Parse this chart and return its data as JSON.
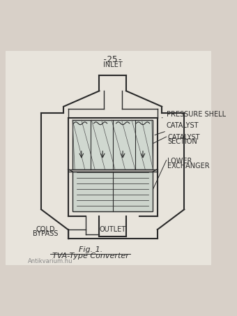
{
  "background_color": "#d8d0c8",
  "page_color": "#e8e4dc",
  "line_color": "#2a2a2a",
  "title_number": "-25-",
  "fig_label": "Fig. 1.",
  "fig_caption": "TVA-Type Converter",
  "font_size_labels": 7,
  "font_size_caption": 8,
  "font_size_fig": 8,
  "font_size_pagenumber": 9
}
